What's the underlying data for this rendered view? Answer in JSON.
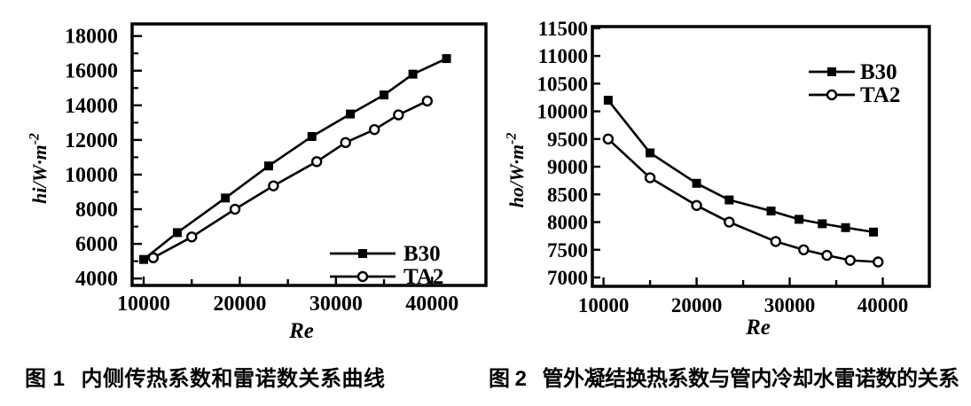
{
  "page": {
    "background": "#ffffff",
    "ink": "#000000"
  },
  "figures": [
    {
      "caption_label": "图 1",
      "caption_text": "内侧传热系数和雷诺数关系曲线"
    },
    {
      "caption_label": "图 2",
      "caption_text": "管外凝结换热系数与管内冷却水雷诺数的关系"
    }
  ],
  "chart_data": [
    {
      "type": "line",
      "title": "",
      "xlabel": "Re",
      "ylabel": "hi/W·m⁻²",
      "ylabel_base": "hi/W·m",
      "ylabel_sup": "-2",
      "xlim": [
        8800,
        45600
      ],
      "ylim": [
        3600,
        18700
      ],
      "x_ticks": [
        10000,
        20000,
        30000,
        40000
      ],
      "x_minor_step": 5000,
      "y_ticks": [
        4000,
        6000,
        8000,
        10000,
        12000,
        14000,
        16000,
        18000
      ],
      "y_minor_step": 1000,
      "grid": false,
      "legend_position": "lower-right",
      "series": [
        {
          "name": "B30",
          "marker": "filled-square",
          "x": [
            10000,
            13500,
            18500,
            23000,
            27500,
            31500,
            35000,
            38000,
            41500
          ],
          "y": [
            5100,
            6650,
            8650,
            10500,
            12200,
            13500,
            14600,
            15800,
            16700
          ]
        },
        {
          "name": "TA2",
          "marker": "open-circle",
          "x": [
            11000,
            15000,
            19500,
            23500,
            28000,
            31000,
            34000,
            36500,
            39500
          ],
          "y": [
            5200,
            6400,
            8000,
            9350,
            10750,
            11850,
            12600,
            13450,
            14250
          ]
        }
      ]
    },
    {
      "type": "line",
      "title": "",
      "xlabel": "Re",
      "ylabel": "ho/W·m⁻²",
      "ylabel_base": "ho/W·m",
      "ylabel_sup": "-2",
      "xlim": [
        8800,
        45000
      ],
      "ylim": [
        6840,
        11530
      ],
      "x_ticks": [
        10000,
        20000,
        30000,
        40000
      ],
      "x_minor_step": 5000,
      "y_ticks": [
        7000,
        7500,
        8000,
        8500,
        9000,
        9500,
        10000,
        10500,
        11000,
        11500
      ],
      "y_minor_step": null,
      "grid": false,
      "legend_position": "upper-right",
      "series": [
        {
          "name": "B30",
          "marker": "filled-square",
          "x": [
            10500,
            15000,
            20000,
            23500,
            28000,
            31000,
            33500,
            36000,
            39000
          ],
          "y": [
            10200,
            9250,
            8700,
            8400,
            8200,
            8050,
            7970,
            7900,
            7820
          ]
        },
        {
          "name": "TA2",
          "marker": "open-circle",
          "x": [
            10500,
            15000,
            20000,
            23500,
            28500,
            31500,
            34000,
            36500,
            39500
          ],
          "y": [
            9500,
            8800,
            8300,
            8000,
            7650,
            7500,
            7400,
            7310,
            7280
          ]
        }
      ]
    }
  ]
}
